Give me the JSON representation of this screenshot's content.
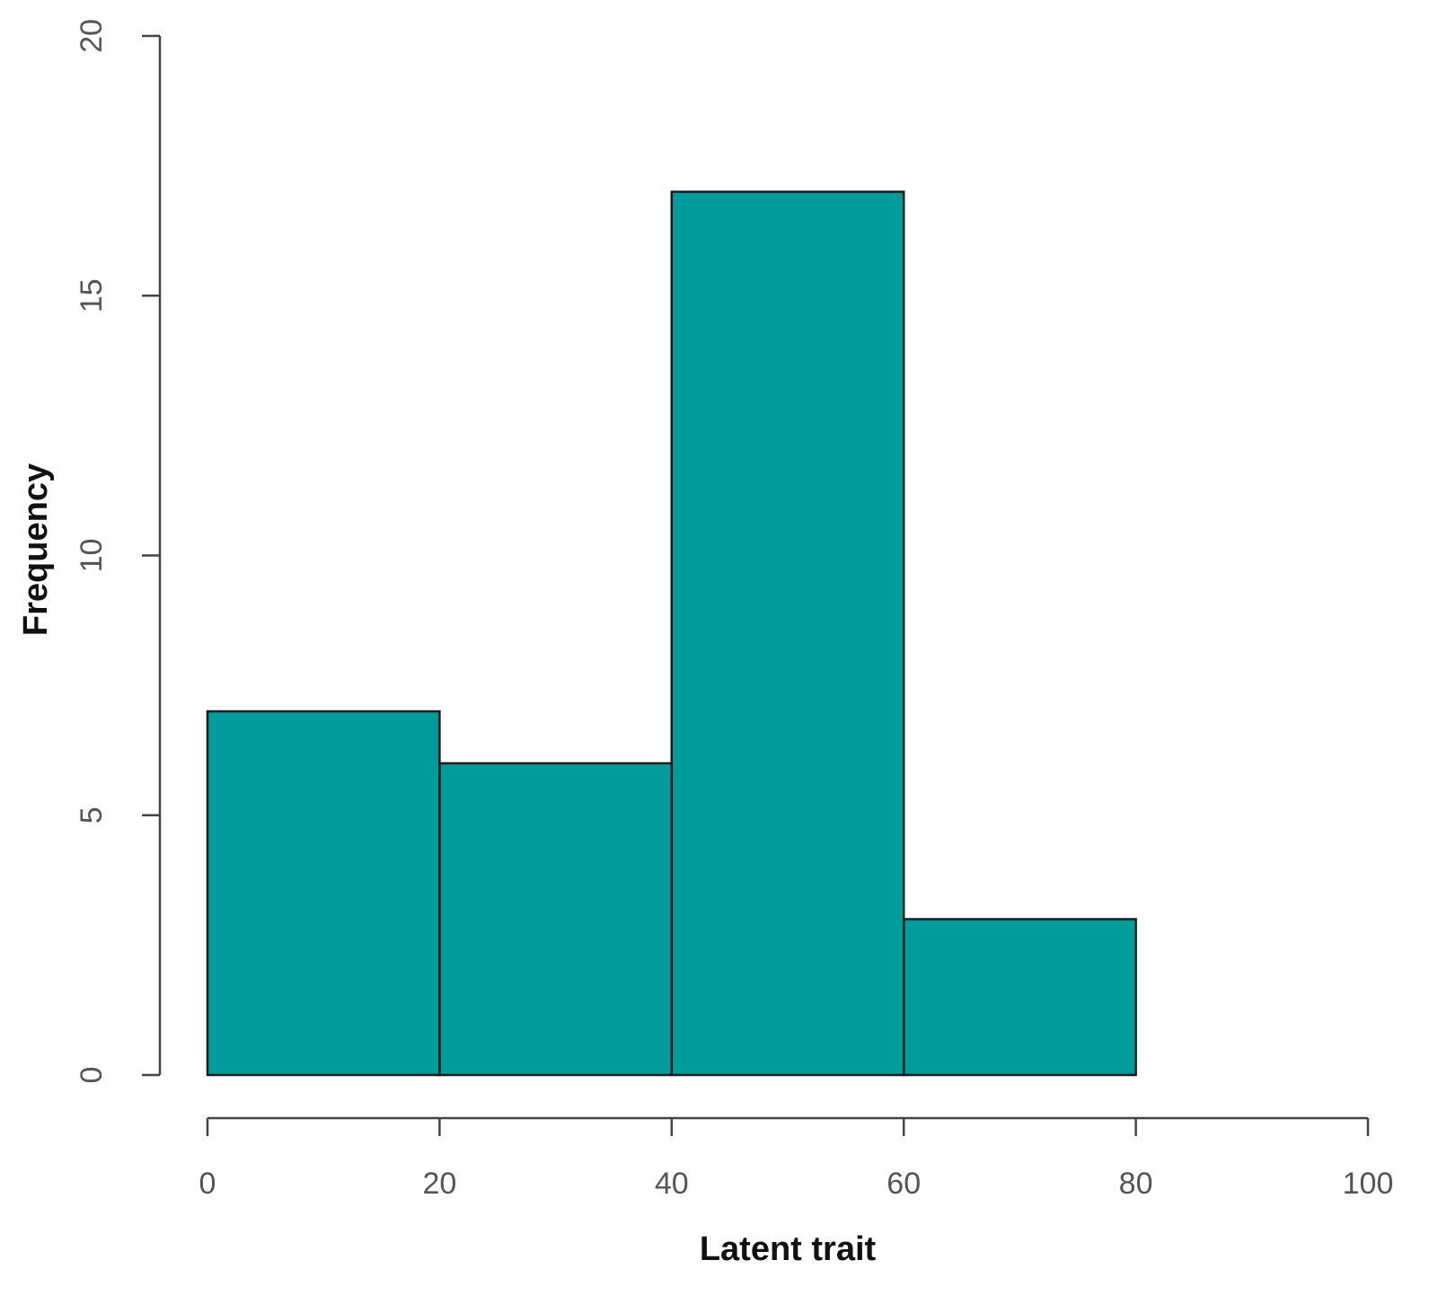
{
  "chart_data": {
    "type": "histogram",
    "x_label": "Latent trait",
    "y_label": "Frequency",
    "bins": [
      0,
      20,
      40,
      60,
      80
    ],
    "values": [
      7,
      6,
      17,
      3
    ],
    "color": "#009b9b",
    "xlim": [
      0,
      100
    ],
    "xticks": [
      0,
      20,
      40,
      60,
      80,
      100
    ],
    "ylim": [
      0,
      20
    ],
    "yticks": [
      0,
      5,
      10,
      15,
      20
    ]
  }
}
